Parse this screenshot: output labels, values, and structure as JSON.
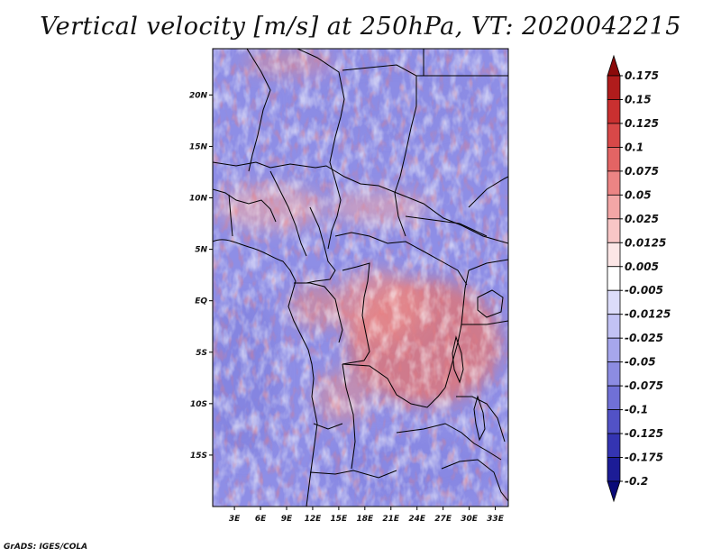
{
  "title": "Vertical velocity [m/s] at 250hPa, VT: 2020042215",
  "credit": "GrADS: IGES/COLA",
  "lat_axis": {
    "labels": [
      "20N",
      "15N",
      "10N",
      "5N",
      "EQ",
      "5S",
      "10S",
      "15S"
    ],
    "values": [
      20,
      15,
      10,
      5,
      0,
      -5,
      -10,
      -15
    ],
    "range": [
      -20,
      24.5
    ]
  },
  "lon_axis": {
    "labels": [
      "3E",
      "6E",
      "9E",
      "12E",
      "15E",
      "18E",
      "21E",
      "24E",
      "27E",
      "30E",
      "33E"
    ],
    "values": [
      3,
      6,
      9,
      12,
      15,
      18,
      21,
      24,
      27,
      30,
      33
    ],
    "range": [
      0.5,
      34.5
    ]
  },
  "colorbar": {
    "labels": [
      "0.175",
      "0.15",
      "0.125",
      "0.1",
      "0.075",
      "0.05",
      "0.025",
      "0.0125",
      "0.005",
      "-0.005",
      "-0.0125",
      "-0.025",
      "-0.05",
      "-0.075",
      "-0.1",
      "-0.125",
      "-0.175",
      "-0.2"
    ],
    "colors": [
      "#8b0a0a",
      "#b01c1c",
      "#c93030",
      "#d84848",
      "#e36464",
      "#ec8484",
      "#f3a6a6",
      "#f8c6c6",
      "#fce6e6",
      "#ffffff",
      "#dcdcfa",
      "#c2c2f4",
      "#a6a6ec",
      "#8c8ce2",
      "#7070d6",
      "#5252c6",
      "#3434b2",
      "#1c1c96",
      "#0a0a78"
    ]
  },
  "colors": {
    "ocean_bg": "#8e8ee6",
    "border": "#000000"
  }
}
